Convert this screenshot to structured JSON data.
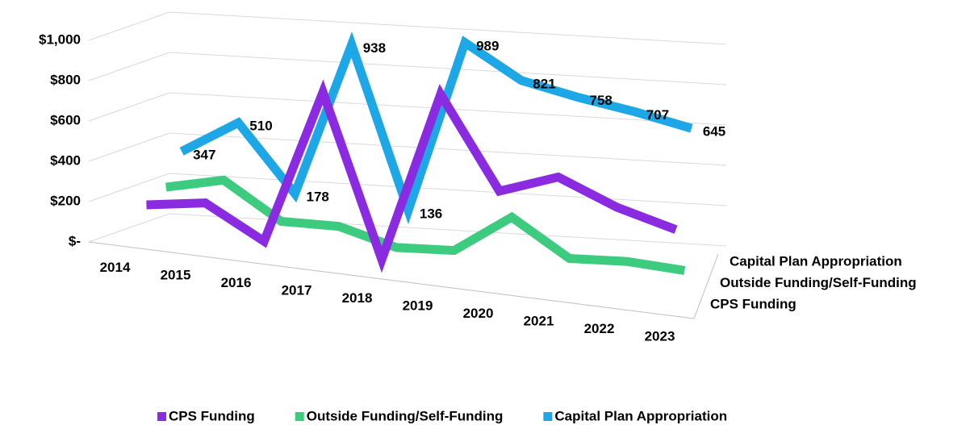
{
  "chart_data": {
    "type": "line3d",
    "categories": [
      "2014",
      "2015",
      "2016",
      "2017",
      "2018",
      "2019",
      "2020",
      "2021",
      "2022",
      "2023"
    ],
    "series": [
      {
        "name": "CPS Funding",
        "color": "#8a2be2",
        "values": [
          150,
          190,
          30,
          800,
          0,
          850,
          400,
          500,
          380,
          300
        ]
      },
      {
        "name": "Outside Funding/Self-Funding",
        "color": "#3ccb7f",
        "values": [
          200,
          260,
          80,
          80,
          0,
          10,
          200,
          20,
          30,
          10
        ]
      },
      {
        "name": "Capital Plan Appropriation",
        "color": "#1ea7e6",
        "values": [
          347,
          510,
          178,
          938,
          136,
          989,
          821,
          758,
          707,
          645
        ]
      }
    ],
    "ylim": [
      0,
      1000
    ],
    "yticks": [
      {
        "value": 0,
        "label": "$-"
      },
      {
        "value": 200,
        "label": "$200"
      },
      {
        "value": 400,
        "label": "$400"
      },
      {
        "value": 600,
        "label": "$600"
      },
      {
        "value": 800,
        "label": "$800"
      },
      {
        "value": 1000,
        "label": "$1,000"
      }
    ],
    "grid": true
  }
}
